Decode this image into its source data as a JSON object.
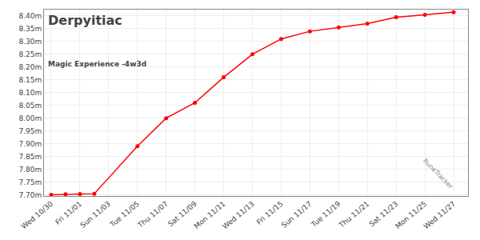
{
  "chart_data": {
    "type": "line",
    "title": "Derpyitiac",
    "subtitle": "Magic Experience -4w3d",
    "annotations": [
      "RuneTracker"
    ],
    "x": [
      0,
      1,
      2,
      3,
      6,
      8,
      10,
      12,
      14,
      16,
      18,
      20,
      22,
      24,
      26,
      28
    ],
    "values": [
      7.7,
      7.702,
      7.703,
      7.704,
      7.89,
      8.0,
      8.06,
      8.16,
      8.25,
      8.31,
      8.34,
      8.355,
      8.37,
      8.395,
      8.405,
      8.415
    ],
    "color": "#ff0000",
    "marker": "circle",
    "line_style": "solid",
    "xlim": [
      -0.5,
      29.0
    ],
    "xticks": [
      {
        "value": 0,
        "label": "Wed 10/30"
      },
      {
        "value": 2,
        "label": "Fri 11/01"
      },
      {
        "value": 4,
        "label": "Sun 11/03"
      },
      {
        "value": 6,
        "label": "Tue 11/05"
      },
      {
        "value": 8,
        "label": "Thu 11/07"
      },
      {
        "value": 10,
        "label": "Sat 11/09"
      },
      {
        "value": 12,
        "label": "Mon 11/11"
      },
      {
        "value": 14,
        "label": "Wed 11/13"
      },
      {
        "value": 16,
        "label": "Fri 11/15"
      },
      {
        "value": 18,
        "label": "Sun 11/17"
      },
      {
        "value": 20,
        "label": "Tue 11/19"
      },
      {
        "value": 22,
        "label": "Thu 11/21"
      },
      {
        "value": 24,
        "label": "Sat 11/23"
      },
      {
        "value": 26,
        "label": "Mon 11/25"
      },
      {
        "value": 28,
        "label": "Wed 11/27"
      }
    ],
    "ylim": [
      7.695,
      8.425
    ],
    "yticks": [
      {
        "value": 7.7,
        "label": "7.70m"
      },
      {
        "value": 7.75,
        "label": "7.75m"
      },
      {
        "value": 7.8,
        "label": "7.80m"
      },
      {
        "value": 7.85,
        "label": "7.85m"
      },
      {
        "value": 7.9,
        "label": "7.90m"
      },
      {
        "value": 7.95,
        "label": "7.95m"
      },
      {
        "value": 8.0,
        "label": "8.00m"
      },
      {
        "value": 8.05,
        "label": "8.05m"
      },
      {
        "value": 8.1,
        "label": "8.10m"
      },
      {
        "value": 8.15,
        "label": "8.15m"
      },
      {
        "value": 8.2,
        "label": "8.20m"
      },
      {
        "value": 8.25,
        "label": "8.25m"
      },
      {
        "value": 8.3,
        "label": "8.30m"
      },
      {
        "value": 8.35,
        "label": "8.35m"
      },
      {
        "value": 8.4,
        "label": "8.40m"
      }
    ],
    "grid": true
  }
}
